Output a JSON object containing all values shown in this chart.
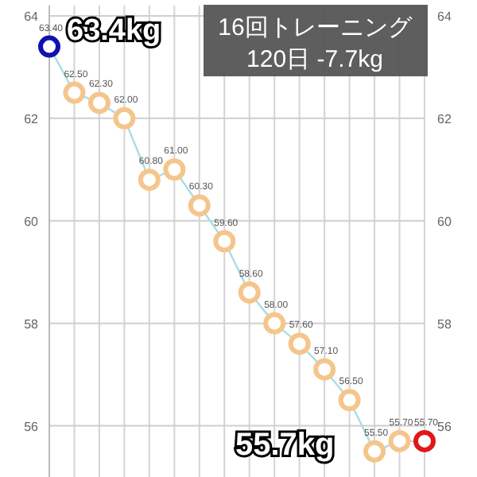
{
  "chart_data": {
    "type": "line",
    "categories": [
      null,
      null,
      null,
      null,
      null,
      null,
      null,
      null,
      null,
      null,
      null,
      null,
      null,
      null,
      null,
      null
    ],
    "series": [
      {
        "color": "#a8dde6",
        "colors": [
          "#1010b0",
          "#f5c58c",
          "#f5c58c",
          "#f5c58c",
          "#f5c58c",
          "#f5c58c",
          "#f5c58c",
          "#f5c58c",
          "#f5c58c",
          "#f5c58c",
          "#f5c58c",
          "#f5c58c",
          "#f5c58c",
          "#f5c58c",
          "#f5c58c",
          "#e01818"
        ],
        "values": [
          63.4,
          62.5,
          62.3,
          62.0,
          60.8,
          61.0,
          60.3,
          59.6,
          58.6,
          58.0,
          57.6,
          57.1,
          56.5,
          55.5,
          55.7,
          55.7
        ],
        "value_labels": [
          "63.40",
          "62.50",
          "62.30",
          "62.00",
          "60.80",
          "61.00",
          "60.30",
          "59.60",
          "58.60",
          "58.00",
          "57.60",
          "57.10",
          "56.50",
          "55.50",
          "55.70",
          "55.70"
        ]
      }
    ],
    "ylim": [
      55,
      64.2
    ],
    "yticks": [
      56,
      58,
      60,
      62,
      64
    ],
    "y2lim": [
      55,
      64.2
    ],
    "y2ticks": [
      56,
      58,
      60,
      62,
      64
    ],
    "grid": true,
    "marker": "circle",
    "line_style": "solid",
    "annotations": [
      "63.4kg",
      "16回トレーニング",
      "120日 -7.7kg",
      "55.7kg"
    ]
  }
}
